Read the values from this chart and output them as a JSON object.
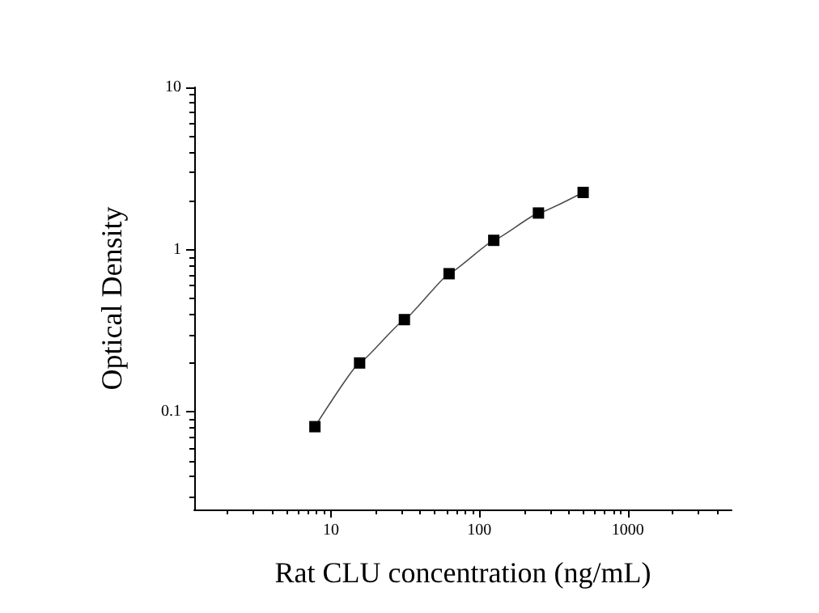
{
  "chart_data": {
    "type": "line",
    "xlabel": "Rat CLU concentration (ng/mL)",
    "ylabel": "Optical Density",
    "x": [
      7.8,
      15.6,
      31.25,
      62.5,
      125,
      250,
      500
    ],
    "series": [
      {
        "color": "#000000",
        "values": [
          0.081,
          0.2,
          0.37,
          0.71,
          1.14,
          1.68,
          2.25
        ]
      }
    ],
    "log": "xy",
    "xlim": [
      1.2,
      5000
    ],
    "ylim": [
      0.025,
      10
    ],
    "xticks": [
      10,
      100,
      1000
    ],
    "yticks": [
      0.1,
      1,
      10
    ],
    "marker": "square",
    "line_style": "solid",
    "grid": false
  }
}
